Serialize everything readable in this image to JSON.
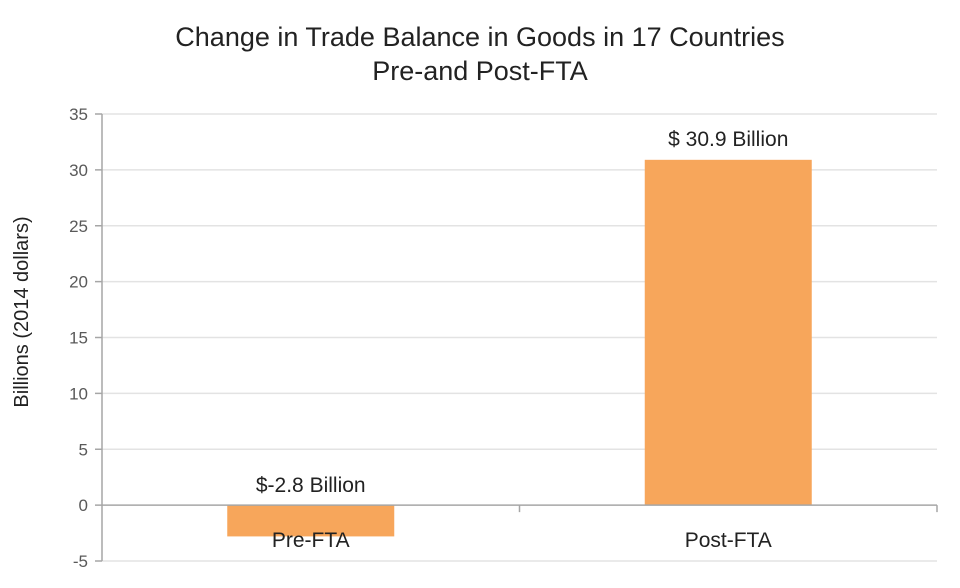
{
  "chart_data": {
    "type": "bar",
    "title": "Change in Trade Balance in Goods in 17 Countries",
    "subtitle": "Pre-and Post-FTA",
    "xlabel": "",
    "ylabel": "Billions (2014 dollars)",
    "ylim": [
      -5,
      35
    ],
    "yticks": [
      -5,
      0,
      5,
      10,
      15,
      20,
      25,
      30,
      35
    ],
    "categories": [
      "Pre-FTA",
      "Post-FTA"
    ],
    "values": [
      -2.8,
      30.9
    ],
    "data_labels": [
      "$-2.8 Billion",
      "$ 30.9 Billion"
    ],
    "grid": true,
    "legend": "none",
    "colors": {
      "bar": "#F7A65B",
      "grid": "#e3e3e3",
      "axis": "#a6a6a6",
      "text": "#222222",
      "tick_text": "#595959"
    }
  }
}
